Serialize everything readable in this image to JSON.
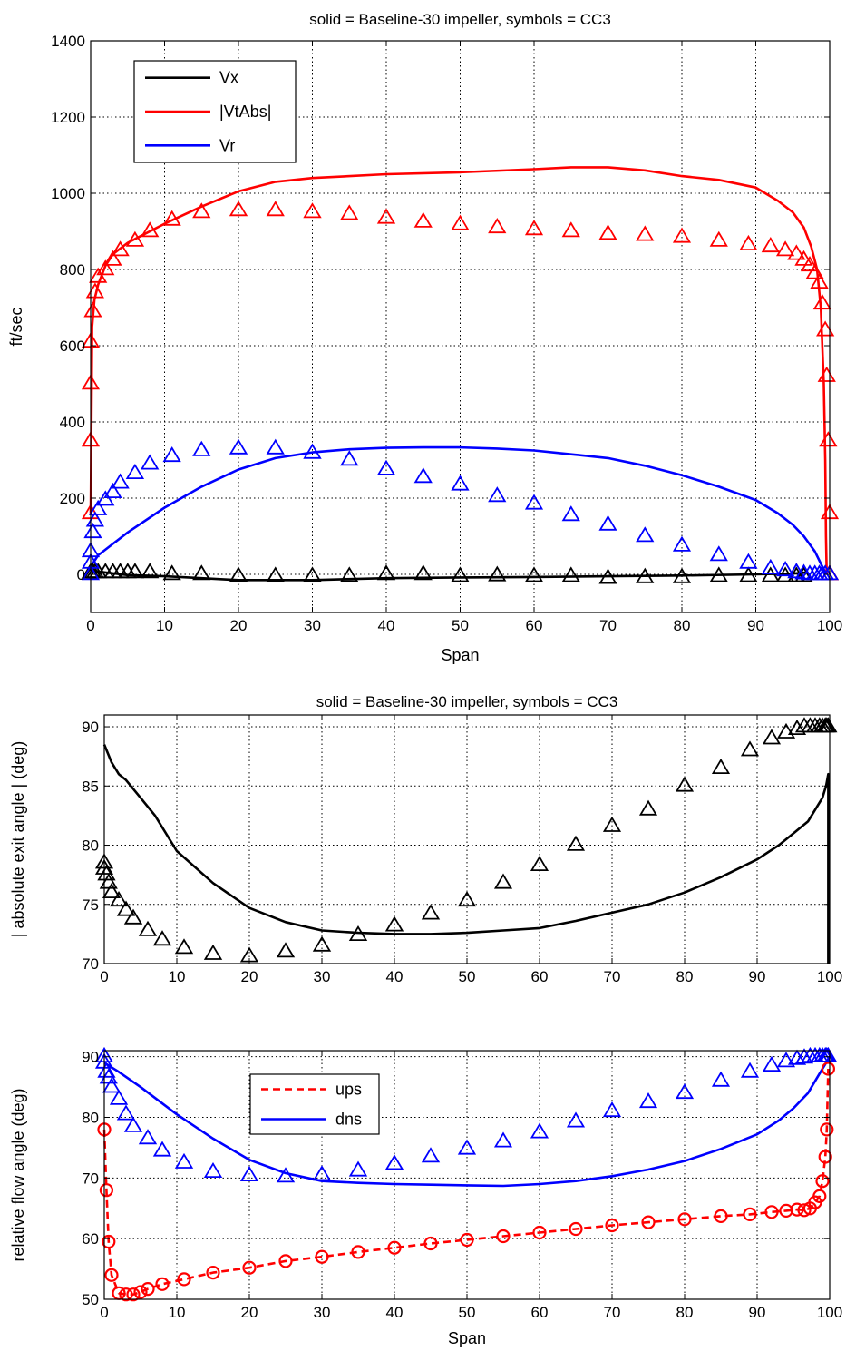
{
  "chart_data": [
    {
      "type": "line",
      "title": "solid = Baseline-30 impeller,  symbols = CC3",
      "xlabel": "Span",
      "ylabel": "ft/sec",
      "xlim": [
        0,
        100
      ],
      "ylim": [
        -100,
        1400
      ],
      "xticks": [
        0,
        10,
        20,
        30,
        40,
        50,
        60,
        70,
        80,
        90,
        100
      ],
      "yticks": [
        0,
        200,
        400,
        600,
        800,
        1000,
        1200,
        1400
      ],
      "grid": true,
      "legend": {
        "placement": "top-left",
        "entries": [
          "Vx",
          "|VtAbs|",
          "Vr"
        ]
      },
      "series": [
        {
          "name": "Vx",
          "style": "solid",
          "color": "#000000",
          "x": [
            0,
            2,
            5,
            10,
            15,
            20,
            30,
            40,
            50,
            60,
            70,
            80,
            90,
            95,
            97
          ],
          "y": [
            10,
            5,
            -2,
            -5,
            -10,
            -15,
            -15,
            -10,
            -8,
            -7,
            -5,
            -3,
            0,
            2,
            5
          ]
        },
        {
          "name": "|VtAbs|",
          "style": "solid",
          "color": "#ff0000",
          "x": [
            0,
            0.2,
            0.5,
            1,
            2,
            3,
            5,
            7,
            10,
            15,
            20,
            25,
            30,
            40,
            50,
            60,
            65,
            70,
            75,
            80,
            85,
            90,
            93,
            95,
            96.5,
            97.5,
            98.3,
            98.8,
            99.2,
            99.4,
            99.5,
            99.6
          ],
          "y": [
            160,
            650,
            720,
            760,
            810,
            840,
            870,
            890,
            920,
            965,
            1005,
            1030,
            1040,
            1050,
            1055,
            1063,
            1068,
            1068,
            1060,
            1045,
            1035,
            1015,
            980,
            950,
            910,
            860,
            800,
            700,
            500,
            300,
            100,
            0
          ]
        },
        {
          "name": "Vr",
          "style": "solid",
          "color": "#0000ff",
          "x": [
            0,
            1,
            3,
            5,
            10,
            15,
            20,
            25,
            30,
            35,
            40,
            45,
            50,
            55,
            60,
            65,
            70,
            75,
            80,
            85,
            90,
            93,
            95,
            96.5,
            98,
            99,
            99.5
          ],
          "y": [
            20,
            50,
            80,
            110,
            175,
            230,
            275,
            305,
            320,
            328,
            332,
            333,
            333,
            330,
            325,
            315,
            305,
            285,
            260,
            230,
            195,
            160,
            130,
            100,
            60,
            20,
            0
          ]
        },
        {
          "name": "Vx",
          "style": "triangle",
          "color": "#000000",
          "x": [
            0,
            0.3,
            0.6,
            1,
            2,
            3,
            4,
            5,
            6,
            8,
            11,
            15,
            20,
            25,
            30,
            35,
            40,
            45,
            50,
            55,
            60,
            65,
            70,
            75,
            80,
            85,
            89,
            92,
            94,
            95.5,
            96.5
          ],
          "y": [
            5,
            5,
            5,
            5,
            5,
            5,
            5,
            5,
            5,
            5,
            0,
            0,
            -5,
            -5,
            -5,
            -5,
            0,
            0,
            -5,
            -3,
            -5,
            -5,
            -10,
            -8,
            -8,
            -5,
            -5,
            -5,
            -5,
            -5,
            -5
          ]
        },
        {
          "name": "|VtAbs|",
          "style": "triangle",
          "color": "#ff0000",
          "x": [
            0,
            0,
            0,
            0,
            0.3,
            0.6,
            1,
            2,
            3,
            4,
            6,
            8,
            11,
            15,
            20,
            25,
            30,
            35,
            40,
            45,
            50,
            55,
            60,
            65,
            70,
            75,
            80,
            85,
            89,
            92,
            94,
            95.5,
            96.5,
            97.3,
            98,
            98.6,
            99,
            99.4,
            99.6,
            99.8,
            100,
            100,
            100
          ],
          "y": [
            160,
            350,
            500,
            610,
            690,
            740,
            780,
            800,
            825,
            850,
            875,
            900,
            930,
            950,
            955,
            955,
            950,
            945,
            935,
            925,
            918,
            910,
            905,
            900,
            893,
            890,
            885,
            875,
            865,
            860,
            850,
            840,
            825,
            810,
            790,
            765,
            710,
            640,
            520,
            350,
            160,
            0,
            0
          ]
        },
        {
          "name": "Vr",
          "style": "triangle",
          "color": "#0000ff",
          "x": [
            0,
            0,
            0,
            0.3,
            0.6,
            1,
            2,
            3,
            4,
            6,
            8,
            11,
            15,
            20,
            25,
            30,
            35,
            40,
            45,
            50,
            55,
            60,
            65,
            70,
            75,
            80,
            85,
            89,
            92,
            94,
            95.5,
            96.5,
            97.3,
            98,
            98.6,
            99,
            99.4,
            100
          ],
          "y": [
            0,
            30,
            60,
            110,
            140,
            170,
            195,
            215,
            240,
            265,
            290,
            310,
            325,
            330,
            330,
            318,
            300,
            275,
            255,
            235,
            205,
            185,
            155,
            130,
            100,
            75,
            50,
            30,
            15,
            10,
            5,
            2,
            0,
            0,
            0,
            0,
            0,
            0
          ]
        }
      ]
    },
    {
      "type": "line",
      "title": "solid = Baseline-30 impeller,  symbols = CC3",
      "xlabel": "",
      "ylabel": "| absolute exit angle |  (deg)",
      "xlim": [
        0,
        100
      ],
      "ylim": [
        70,
        91
      ],
      "xticks": [
        0,
        10,
        20,
        30,
        40,
        50,
        60,
        70,
        80,
        90,
        100
      ],
      "yticks": [
        70,
        75,
        80,
        85,
        90
      ],
      "grid": true,
      "series": [
        {
          "name": "Baseline-30 impeller",
          "style": "solid",
          "color": "#000000",
          "x": [
            0,
            1,
            2,
            3,
            5,
            7,
            10,
            15,
            20,
            25,
            30,
            35,
            40,
            45,
            50,
            55,
            60,
            65,
            70,
            75,
            80,
            85,
            90,
            93,
            95,
            97,
            98,
            99,
            99.5,
            99.8,
            99.8,
            99.8
          ],
          "y": [
            88.5,
            87,
            86,
            85.5,
            84,
            82.5,
            79.5,
            76.8,
            74.7,
            73.5,
            72.8,
            72.6,
            72.5,
            72.5,
            72.6,
            72.8,
            73,
            73.6,
            74.3,
            75,
            76,
            77.3,
            78.8,
            80,
            81,
            82,
            83,
            84,
            85,
            86,
            78,
            70
          ]
        },
        {
          "name": "CC3",
          "style": "triangle",
          "color": "#000000",
          "x": [
            0,
            0,
            0.3,
            0.6,
            1,
            2,
            3,
            4,
            6,
            8,
            11,
            15,
            20,
            25,
            30,
            35,
            40,
            45,
            50,
            55,
            60,
            65,
            70,
            75,
            80,
            85,
            89,
            92,
            94,
            95.5,
            96.5,
            97.3,
            98,
            98.6,
            99,
            99.4,
            99.6,
            99.8
          ],
          "y": [
            78.5,
            78,
            77.5,
            76.8,
            76,
            75.3,
            74.5,
            73.8,
            72.8,
            72,
            71.3,
            70.8,
            70.6,
            71,
            71.5,
            72.4,
            73.2,
            74.2,
            75.3,
            76.8,
            78.3,
            80,
            81.6,
            83,
            85,
            86.5,
            88,
            89,
            89.5,
            89.8,
            90,
            90,
            90,
            90,
            90,
            90,
            90,
            90
          ]
        }
      ]
    },
    {
      "type": "line",
      "title": "",
      "xlabel": "Span",
      "ylabel": "relative flow angle (deg)",
      "xlim": [
        0,
        100
      ],
      "ylim": [
        50,
        91
      ],
      "xticks": [
        0,
        10,
        20,
        30,
        40,
        50,
        60,
        70,
        80,
        90,
        100
      ],
      "yticks": [
        50,
        60,
        70,
        80,
        90
      ],
      "grid": true,
      "legend": {
        "placement": "top-center",
        "entries": [
          "ups",
          "dns"
        ]
      },
      "series": [
        {
          "name": "ups",
          "style": "dashed",
          "color": "#ff0000",
          "x": [
            0,
            0.3,
            0.6,
            1,
            2,
            3,
            4,
            5,
            6,
            8,
            11,
            15,
            20,
            25,
            30,
            35,
            40,
            45,
            50,
            55,
            60,
            65,
            70,
            75,
            80,
            85,
            89,
            92,
            94,
            95.5,
            96.5,
            97.3,
            98,
            98.6,
            99,
            99.4,
            99.6,
            99.8
          ],
          "y": [
            78,
            68,
            59.5,
            54,
            51,
            50.8,
            50.8,
            51.2,
            51.7,
            52.5,
            53.3,
            54.4,
            55.2,
            56.3,
            57,
            57.8,
            58.5,
            59.2,
            59.8,
            60.4,
            61,
            61.6,
            62.2,
            62.7,
            63.2,
            63.7,
            64,
            64.4,
            64.6,
            64.8,
            64.7,
            65,
            66,
            67,
            69.5,
            73.5,
            78,
            88
          ]
        },
        {
          "name": "dns",
          "style": "solid",
          "color": "#0000ff",
          "x": [
            0,
            2,
            5,
            10,
            15,
            20,
            25,
            30,
            35,
            40,
            45,
            50,
            55,
            60,
            65,
            70,
            75,
            80,
            85,
            90,
            93,
            95,
            97,
            98.5,
            99.5,
            100
          ],
          "y": [
            89,
            87.5,
            85,
            80.5,
            76.5,
            73,
            70.8,
            69.5,
            69.2,
            69,
            68.9,
            68.8,
            68.7,
            69,
            69.5,
            70.3,
            71.4,
            72.8,
            74.8,
            77.2,
            79.5,
            81.5,
            84,
            87,
            89,
            90
          ]
        },
        {
          "name": "dns",
          "style": "triangle",
          "color": "#0000ff",
          "x": [
            0,
            0,
            0.3,
            0.6,
            1,
            2,
            3,
            4,
            6,
            8,
            11,
            15,
            20,
            25,
            30,
            35,
            40,
            45,
            50,
            55,
            60,
            65,
            70,
            75,
            80,
            85,
            89,
            92,
            94,
            95.5,
            96.5,
            97.3,
            98,
            98.6,
            99,
            99.4,
            99.6,
            99.8
          ],
          "y": [
            90,
            89,
            87.5,
            86.5,
            85,
            83,
            80.5,
            78.5,
            76.5,
            74.5,
            72.5,
            71,
            70.4,
            70.2,
            70.5,
            71.2,
            72.3,
            73.5,
            74.8,
            76,
            77.5,
            79.3,
            81,
            82.5,
            84,
            86,
            87.5,
            88.5,
            89.2,
            89.6,
            89.8,
            90,
            90,
            90,
            90,
            90,
            90,
            90
          ]
        },
        {
          "name": "ups",
          "style": "circle",
          "color": "#ff0000",
          "x": [
            0,
            0.3,
            0.6,
            1,
            2,
            3,
            4,
            5,
            6,
            8,
            11,
            15,
            20,
            25,
            30,
            35,
            40,
            45,
            50,
            55,
            60,
            65,
            70,
            75,
            80,
            85,
            89,
            92,
            94,
            95.5,
            96.5,
            97.3,
            98,
            98.6,
            99,
            99.4,
            99.6,
            99.8
          ],
          "y": [
            78,
            68,
            59.5,
            54,
            51,
            50.8,
            50.8,
            51.2,
            51.7,
            52.5,
            53.3,
            54.4,
            55.2,
            56.3,
            57,
            57.8,
            58.5,
            59.2,
            59.8,
            60.4,
            61,
            61.6,
            62.2,
            62.7,
            63.2,
            63.7,
            64,
            64.4,
            64.6,
            64.8,
            64.7,
            65,
            66,
            67,
            69.5,
            73.5,
            78,
            88
          ]
        }
      ]
    }
  ]
}
